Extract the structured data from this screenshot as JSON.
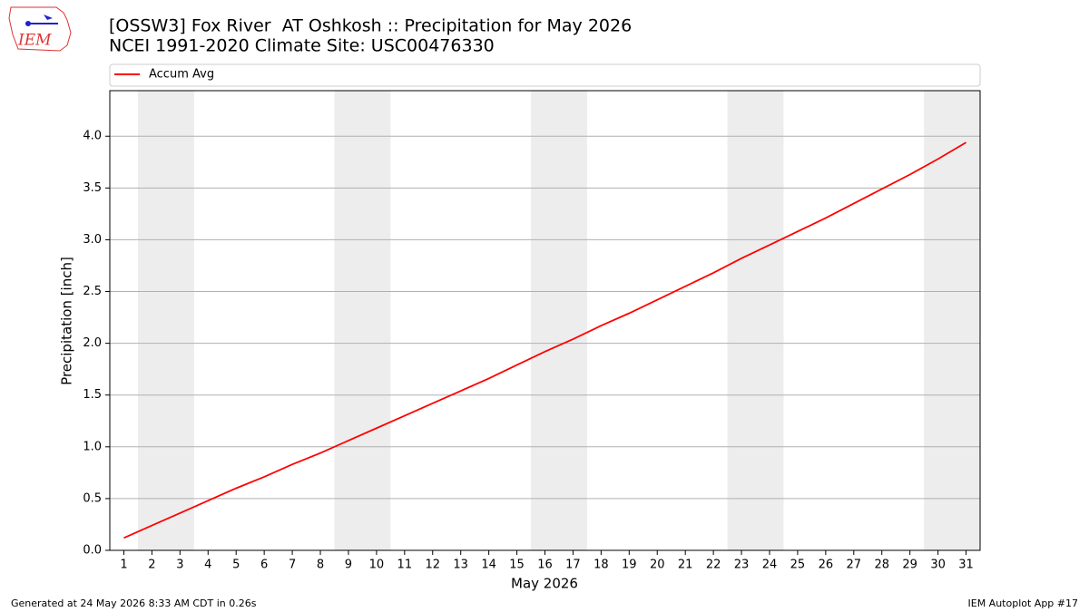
{
  "logo": "IEM",
  "footer": {
    "left": "Generated at 24 May 2026 8:33 AM CDT in 0.26s",
    "right": "IEM Autoplot App #17"
  },
  "chart_data": {
    "type": "line",
    "title": "[OSSW3] Fox River  AT Oshkosh :: Precipitation for May 2026",
    "subtitle": "NCEI 1991-2020 Climate Site: USC00476330",
    "x_label": "May 2026",
    "y_label": "Precipitation [inch]",
    "x": [
      1,
      2,
      3,
      4,
      5,
      6,
      7,
      8,
      9,
      10,
      11,
      12,
      13,
      14,
      15,
      16,
      17,
      18,
      19,
      20,
      21,
      22,
      23,
      24,
      25,
      26,
      27,
      28,
      29,
      30,
      31
    ],
    "series": [
      {
        "name": "Accum Avg",
        "color": "#ff0000",
        "values": [
          0.12,
          0.24,
          0.36,
          0.48,
          0.6,
          0.71,
          0.83,
          0.94,
          1.06,
          1.18,
          1.3,
          1.42,
          1.54,
          1.66,
          1.79,
          1.92,
          2.04,
          2.17,
          2.29,
          2.42,
          2.55,
          2.68,
          2.82,
          2.95,
          3.08,
          3.21,
          3.35,
          3.49,
          3.63,
          3.78,
          3.94
        ]
      }
    ],
    "shaded_bands": [
      [
        1.5,
        3.5
      ],
      [
        8.5,
        10.5
      ],
      [
        15.5,
        17.5
      ],
      [
        22.5,
        24.5
      ],
      [
        29.5,
        31.5
      ]
    ],
    "shade_color": "#ededed",
    "xlim": [
      0.5,
      31.5
    ],
    "ylim": [
      0,
      4.44
    ],
    "xticks": [
      1,
      2,
      3,
      4,
      5,
      6,
      7,
      8,
      9,
      10,
      11,
      12,
      13,
      14,
      15,
      16,
      17,
      18,
      19,
      20,
      21,
      22,
      23,
      24,
      25,
      26,
      27,
      28,
      29,
      30,
      31
    ],
    "yticks": [
      {
        "value": 0,
        "label": "0.0"
      },
      0.5,
      {
        "value": 1,
        "label": "1.0"
      },
      1.5,
      {
        "value": 2,
        "label": "2.0"
      },
      2.5,
      {
        "value": 3,
        "label": "3.0"
      },
      3.5,
      {
        "value": 4,
        "label": "4.0"
      }
    ],
    "grid": true,
    "legend": "top"
  }
}
